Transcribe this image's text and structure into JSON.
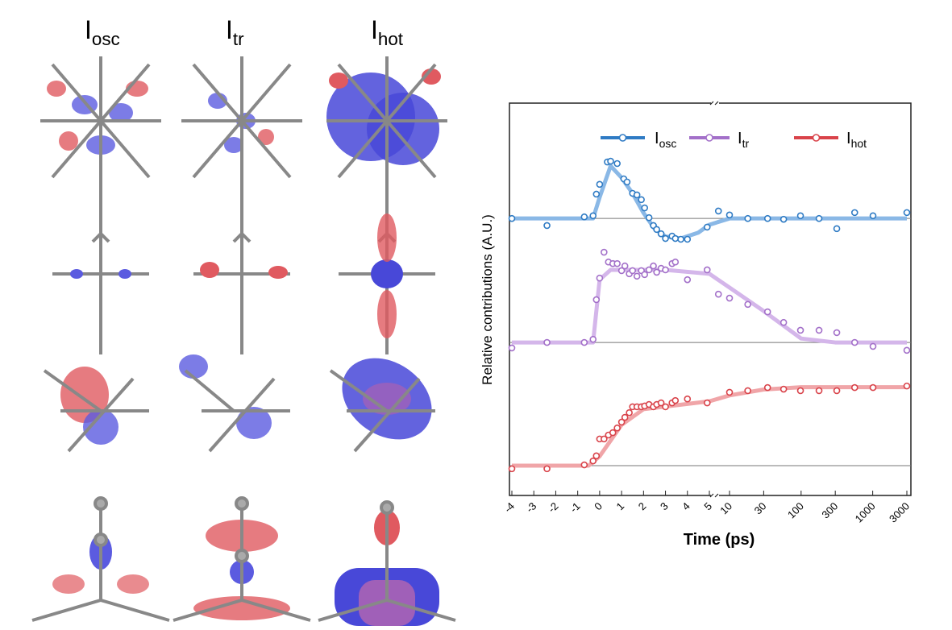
{
  "panels": {
    "titles": [
      [
        "I",
        "osc"
      ],
      [
        "I",
        "tr"
      ],
      [
        "I",
        "hot"
      ]
    ]
  },
  "chart_data": {
    "type": "line",
    "ylabel": "Relative contributions (A.U.)",
    "xlabel": "Time (ps)",
    "xlim": [
      -4,
      3000
    ],
    "xbreak": [
      5,
      10
    ],
    "ylim": [
      0,
      100
    ],
    "xticks": [
      -4,
      -3,
      -2,
      -1,
      0,
      1,
      2,
      3,
      4,
      5,
      10,
      30,
      100,
      300,
      1000,
      3000
    ],
    "series": [
      {
        "name": "I",
        "subscript": "osc",
        "color": "#2f7bc4",
        "fit_color": "#8ab8e6",
        "baseline": 70.6,
        "x": [
          -4,
          -2.4,
          -0.7,
          -0.3,
          -0.15,
          0,
          0.35,
          0.5,
          0.8,
          1.1,
          1.25,
          1.5,
          1.7,
          1.9,
          2.05,
          2.25,
          2.45,
          2.6,
          2.8,
          3.0,
          3.3,
          3.45,
          3.7,
          4.0,
          4.9,
          7,
          10,
          18,
          34,
          57,
          98,
          178,
          315,
          560,
          1010,
          3000
        ],
        "values": [
          70.6,
          68.8,
          71,
          71.3,
          76.8,
          79.3,
          85,
          85.2,
          84.6,
          80.7,
          79.9,
          77,
          76.6,
          75.4,
          73.3,
          70.8,
          68.8,
          67.8,
          66.7,
          65.5,
          66.1,
          65.5,
          65.3,
          65.3,
          68.4,
          72.5,
          71.5,
          70.6,
          70.6,
          70.4,
          71.3,
          70.6,
          68,
          72.1,
          71.3,
          72.1
        ],
        "fit": {
          "x": [
            -4,
            -0.3,
            0,
            0.5,
            1,
            1.5,
            2,
            2.5,
            3,
            3.7,
            4.5,
            5,
            10,
            3000
          ],
          "values": [
            70.6,
            70.6,
            76,
            84,
            81,
            77,
            72,
            68,
            66,
            65.5,
            67,
            69,
            70.6,
            70.6
          ]
        }
      },
      {
        "name": "I",
        "subscript": "tr",
        "color": "#a370c9",
        "fit_color": "#d4b6ea",
        "baseline": 39,
        "x": [
          -4,
          -2.4,
          -0.7,
          -0.3,
          -0.15,
          0,
          0.2,
          0.4,
          0.6,
          0.8,
          1.0,
          1.15,
          1.35,
          1.5,
          1.7,
          1.9,
          2.05,
          2.25,
          2.45,
          2.6,
          2.8,
          3.0,
          3.3,
          3.45,
          4.0,
          4.9,
          7,
          10,
          18,
          34,
          57,
          98,
          178,
          315,
          560,
          1010,
          3000
        ],
        "values": [
          37.6,
          39,
          39,
          39.8,
          49.9,
          55.4,
          62,
          59.5,
          59.1,
          59.1,
          57.3,
          58.5,
          56.5,
          57.3,
          55.9,
          57.3,
          56.3,
          57.5,
          58.5,
          56.9,
          57.9,
          57.5,
          59.1,
          59.5,
          55,
          57.5,
          51.3,
          50.3,
          48.7,
          46.8,
          44.1,
          42.1,
          42.1,
          41.5,
          39,
          38,
          37
        ],
        "fit": {
          "x": [
            -4,
            -0.3,
            0,
            0.5,
            3,
            5,
            10,
            30,
            100,
            300,
            3000
          ],
          "values": [
            39,
            39,
            55,
            57.5,
            57.5,
            56.5,
            53,
            47,
            40,
            39,
            39
          ]
        }
      },
      {
        "name": "I",
        "subscript": "hot",
        "color": "#d9434a",
        "fit_color": "#f0a5a8",
        "baseline": 7.6,
        "x": [
          -4,
          -2.4,
          -0.7,
          -0.3,
          -0.15,
          0,
          0.2,
          0.4,
          0.6,
          0.8,
          1.0,
          1.15,
          1.35,
          1.5,
          1.7,
          1.9,
          2.05,
          2.25,
          2.45,
          2.6,
          2.8,
          3.0,
          3.3,
          3.45,
          4.0,
          4.9,
          10,
          18,
          34,
          57,
          98,
          178,
          315,
          560,
          1010,
          3000
        ],
        "values": [
          6.8,
          6.8,
          7.8,
          8.8,
          10.1,
          14.4,
          14.4,
          15.4,
          16,
          17.2,
          18.7,
          19.9,
          21.1,
          22.6,
          22.6,
          22.6,
          22.8,
          23.2,
          22.6,
          23.2,
          23.6,
          22.6,
          23.6,
          24.2,
          24.6,
          23.6,
          26.3,
          26.7,
          27.5,
          27.1,
          26.7,
          26.7,
          26.7,
          27.5,
          27.5,
          27.9
        ],
        "fit": {
          "x": [
            -4,
            -0.5,
            0,
            1,
            2,
            5,
            10,
            30,
            100,
            3000
          ],
          "values": [
            7.6,
            7.6,
            10,
            18,
            22,
            24,
            25.5,
            27,
            27.6,
            27.6
          ]
        }
      }
    ]
  }
}
